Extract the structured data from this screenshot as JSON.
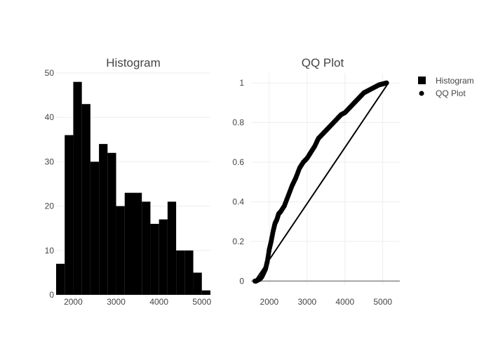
{
  "colors": {
    "marks": "#000000",
    "grid": "#eeeeee",
    "text": "#444444",
    "zeroline": "#888888"
  },
  "legend": {
    "placement": "top-right",
    "items": [
      {
        "label": "Histogram",
        "symbol": "square"
      },
      {
        "label": "QQ Plot",
        "symbol": "circle"
      }
    ]
  },
  "chart_data": [
    {
      "type": "bar",
      "title": "Histogram",
      "xlabel": "",
      "ylabel": "",
      "xlim": [
        1600,
        5200
      ],
      "ylim": [
        0,
        50
      ],
      "grid": true,
      "bin_width": 200,
      "bin_starts": [
        1600,
        1800,
        2000,
        2200,
        2400,
        2600,
        2800,
        3000,
        3200,
        3400,
        3600,
        3800,
        4000,
        4200,
        4400,
        4600,
        4800,
        5000
      ],
      "values": [
        7,
        36,
        48,
        43,
        30,
        34,
        32,
        20,
        23,
        23,
        21,
        16,
        17,
        21,
        10,
        10,
        5,
        1
      ],
      "x_ticks": [
        2000,
        3000,
        4000,
        5000
      ],
      "y_ticks": [
        0,
        10,
        20,
        30,
        40,
        50
      ]
    },
    {
      "type": "scatter",
      "title": "QQ Plot",
      "xlabel": "",
      "ylabel": "",
      "xlim": [
        1520,
        5450
      ],
      "ylim": [
        -0.02,
        1.05
      ],
      "grid": true,
      "curve_x": [
        1620,
        1650,
        1700,
        1750,
        1800,
        1850,
        1900,
        1950,
        2000,
        2050,
        2100,
        2150,
        2200,
        2250,
        2300,
        2400,
        2500,
        2600,
        2700,
        2800,
        2900,
        3000,
        3100,
        3200,
        3300,
        3400,
        3500,
        3600,
        3700,
        3800,
        3900,
        4000,
        4100,
        4200,
        4300,
        4400,
        4500,
        4600,
        4700,
        4800,
        4900,
        5000,
        5100
      ],
      "curve_y": [
        0.0,
        0.0,
        0.005,
        0.01,
        0.02,
        0.04,
        0.06,
        0.1,
        0.16,
        0.2,
        0.25,
        0.29,
        0.31,
        0.34,
        0.35,
        0.38,
        0.43,
        0.48,
        0.52,
        0.57,
        0.6,
        0.62,
        0.65,
        0.68,
        0.72,
        0.74,
        0.76,
        0.78,
        0.8,
        0.82,
        0.84,
        0.85,
        0.87,
        0.89,
        0.91,
        0.93,
        0.95,
        0.96,
        0.97,
        0.98,
        0.99,
        0.995,
        1.0
      ],
      "reference_line": {
        "x": [
          1620,
          5150
        ],
        "y": [
          0,
          1
        ]
      },
      "x_ticks": [
        2000,
        3000,
        4000,
        5000
      ],
      "y_ticks": [
        0,
        0.2,
        0.4,
        0.6,
        0.8,
        1
      ]
    }
  ]
}
